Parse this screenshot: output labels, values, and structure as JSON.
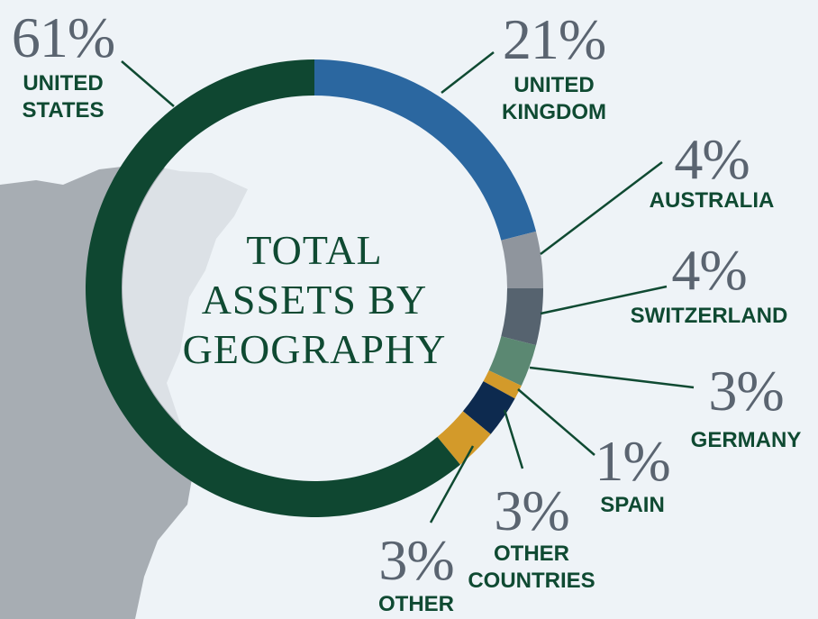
{
  "chart_data": {
    "type": "donut",
    "title": "TOTAL ASSETS BY GEOGRAPHY",
    "categories": [
      "UNITED KINGDOM",
      "AUSTRALIA",
      "SWITZERLAND",
      "GERMANY",
      "SPAIN",
      "OTHER COUNTRIES",
      "OTHER",
      "UNITED STATES"
    ],
    "values": [
      21,
      4,
      4,
      3,
      1,
      3,
      3,
      61
    ],
    "value_labels": [
      "21%",
      "4%",
      "4%",
      "3%",
      "1%",
      "3%",
      "3%",
      "61%"
    ],
    "colors": [
      "#2b67a0",
      "#8f959d",
      "#56636f",
      "#5b8872",
      "#d39a2a",
      "#0d2a4f",
      "#d39a2a",
      "#0f4731"
    ]
  }
}
